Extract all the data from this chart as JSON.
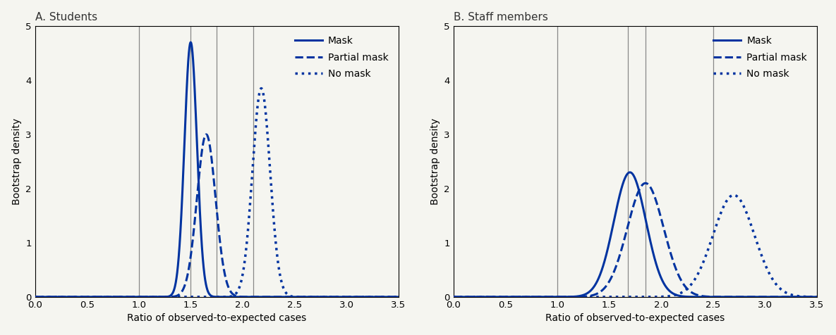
{
  "title_A": "A. Students",
  "title_B": "B. Staff members",
  "xlabel": "Ratio of observed-to-expected cases",
  "ylabel": "Bootstrap density",
  "xlim": [
    0.0,
    3.5
  ],
  "ylim": [
    0.0,
    5.0
  ],
  "xticks": [
    0.0,
    0.5,
    1.0,
    1.5,
    2.0,
    2.5,
    3.0,
    3.5
  ],
  "yticks": [
    0,
    1,
    2,
    3,
    4,
    5
  ],
  "line_color": "#0033a0",
  "bg_color": "#f5f5f0",
  "panel_A": {
    "mask": {
      "mean": 1.5,
      "std": 0.06,
      "peak": 4.7
    },
    "partial_mask": {
      "mean": 1.65,
      "std": 0.09,
      "peak": 3.0
    },
    "no_mask": {
      "mean": 2.18,
      "std": 0.085,
      "peak": 3.85
    },
    "vlines": [
      1.0,
      1.5,
      1.75,
      2.1
    ]
  },
  "panel_B": {
    "mask": {
      "mean": 1.7,
      "std": 0.155,
      "peak": 2.3
    },
    "partial_mask": {
      "mean": 1.85,
      "std": 0.175,
      "peak": 2.1
    },
    "no_mask": {
      "mean": 2.7,
      "std": 0.2,
      "peak": 1.88
    },
    "vlines": [
      1.0,
      1.68,
      1.85,
      2.5
    ]
  },
  "legend_labels": [
    "Mask",
    "Partial mask",
    "No mask"
  ],
  "figsize": [
    11.85,
    4.76
  ],
  "dpi": 100
}
